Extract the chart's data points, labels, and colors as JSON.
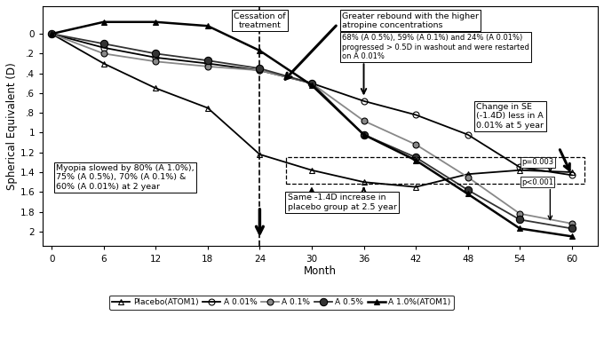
{
  "xlabel": "Month",
  "ylabel": "Spherical Equivalent (D)",
  "xlim": [
    -1,
    63
  ],
  "ylim": [
    -2.15,
    0.28
  ],
  "xticks": [
    0,
    6,
    12,
    18,
    24,
    30,
    36,
    42,
    48,
    54,
    60
  ],
  "yticks": [
    0,
    -0.2,
    -0.4,
    -0.6,
    -0.8,
    -1.0,
    -1.2,
    -1.4,
    -1.6,
    -1.8,
    -2.0
  ],
  "ytick_labels": [
    "0",
    ".2",
    ".4",
    ".6",
    ".8",
    "1",
    "1.2",
    "1.4",
    "1.6",
    "1.8",
    "2"
  ],
  "series": {
    "placebo": {
      "x": [
        0,
        6,
        12,
        18,
        24,
        30,
        36,
        42,
        48,
        54,
        60
      ],
      "y": [
        0,
        -0.3,
        -0.55,
        -0.75,
        -1.22,
        -1.38,
        -1.5,
        -1.55,
        -1.42,
        -1.38,
        -1.4
      ],
      "label": "Placebo(ATOM1)",
      "marker": "^",
      "markersize": 5,
      "color": "black",
      "fillstyle": "none",
      "linewidth": 1.3,
      "linestyle": "-"
    },
    "a001": {
      "x": [
        0,
        6,
        12,
        18,
        24,
        30,
        36,
        42,
        48,
        54,
        60
      ],
      "y": [
        0,
        -0.14,
        -0.24,
        -0.3,
        -0.37,
        -0.5,
        -0.68,
        -0.82,
        -1.02,
        -1.35,
        -1.43
      ],
      "label": "A 0.01%",
      "marker": "o",
      "markersize": 5,
      "color": "black",
      "fillstyle": "none",
      "linewidth": 1.3,
      "linestyle": "-"
    },
    "a01": {
      "x": [
        0,
        6,
        12,
        18,
        24,
        30,
        36,
        42,
        48,
        54,
        60
      ],
      "y": [
        0,
        -0.2,
        -0.28,
        -0.33,
        -0.37,
        -0.5,
        -0.88,
        -1.12,
        -1.45,
        -1.82,
        -1.92
      ],
      "label": "A 0.1%",
      "marker": "o",
      "markersize": 5,
      "color": "#888888",
      "fillstyle": "full",
      "linewidth": 1.3,
      "linestyle": "-"
    },
    "a05": {
      "x": [
        0,
        6,
        12,
        18,
        24,
        30,
        36,
        42,
        48,
        54,
        60
      ],
      "y": [
        0,
        -0.1,
        -0.2,
        -0.27,
        -0.35,
        -0.5,
        -1.02,
        -1.25,
        -1.58,
        -1.88,
        -1.97
      ],
      "label": "A 0.5%",
      "marker": "o",
      "markersize": 6,
      "color": "#333333",
      "fillstyle": "full",
      "linewidth": 1.3,
      "linestyle": "-"
    },
    "a10": {
      "x": [
        0,
        6,
        12,
        18,
        24,
        30,
        36,
        42,
        48,
        54,
        60
      ],
      "y": [
        0,
        0.12,
        0.12,
        0.08,
        -0.17,
        -0.52,
        -1.02,
        -1.28,
        -1.62,
        -1.97,
        -2.05
      ],
      "label": "A 1.0%(ATOM1)",
      "marker": "^",
      "markersize": 5,
      "color": "black",
      "fillstyle": "full",
      "linewidth": 1.8,
      "linestyle": "-"
    }
  },
  "background_color": "#ffffff"
}
